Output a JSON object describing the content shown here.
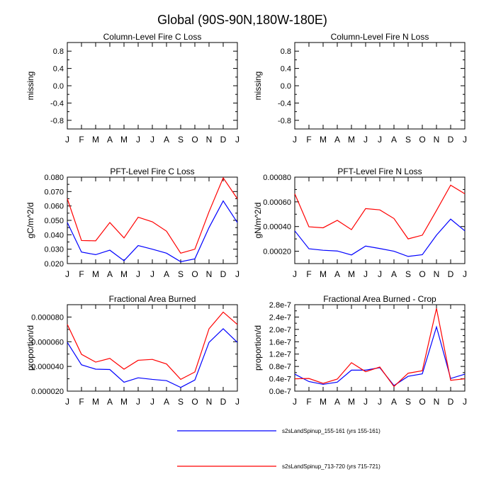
{
  "title": "Global (90S-90N,180W-180E)",
  "month_labels": [
    "J",
    "F",
    "M",
    "A",
    "M",
    "J",
    "J",
    "A",
    "S",
    "O",
    "N",
    "D",
    "J"
  ],
  "chart_data": [
    {
      "type": "line",
      "title": "Column-Level Fire C Loss",
      "ylabel": "missing",
      "ylim": [
        -1.0,
        1.0
      ],
      "yticks": [
        0.8,
        0.4,
        0.0,
        -0.4,
        -0.8
      ],
      "yticklabels": [
        "0.8",
        "0.4",
        "0.0",
        "-0.4",
        "-0.8"
      ],
      "series": []
    },
    {
      "type": "line",
      "title": "Column-Level Fire N Loss",
      "ylabel": "missing",
      "ylim": [
        -1.0,
        1.0
      ],
      "yticks": [
        0.8,
        0.4,
        0.0,
        -0.4,
        -0.8
      ],
      "yticklabels": [
        "0.8",
        "0.4",
        "0.0",
        "-0.4",
        "-0.8"
      ],
      "series": []
    },
    {
      "type": "line",
      "title": "PFT-Level Fire C Loss",
      "ylabel": "gC/m^2/d",
      "ylim": [
        0.02,
        0.08
      ],
      "yticks": [
        0.08,
        0.07,
        0.06,
        0.05,
        0.04,
        0.03,
        0.02
      ],
      "yticklabels": [
        "0.080",
        "0.070",
        "0.060",
        "0.050",
        "0.040",
        "0.030",
        "0.020"
      ],
      "series": [
        {
          "name": "s2sLandSpinup_155-161 (yrs 155-161)",
          "color": "#0000ff",
          "values": [
            0.0485,
            0.028,
            0.0262,
            0.0293,
            0.022,
            0.0325,
            0.03,
            0.0272,
            0.0213,
            0.0233,
            0.045,
            0.0635,
            0.0485
          ]
        },
        {
          "name": "s2sLandSpinup_713-720 (yrs 715-721)",
          "color": "#ff0000",
          "values": [
            0.065,
            0.036,
            0.0358,
            0.0485,
            0.0378,
            0.0522,
            0.049,
            0.0425,
            0.0272,
            0.03,
            0.056,
            0.0795,
            0.065
          ]
        }
      ]
    },
    {
      "type": "line",
      "title": "PFT-Level Fire N Loss",
      "ylabel": "gN/m^2/d",
      "ylim": [
        0.0001,
        0.0008
      ],
      "yticks": [
        0.0008,
        0.0006,
        0.0004,
        0.0002
      ],
      "yticklabels": [
        "0.00080",
        "0.00060",
        "0.00040",
        "0.00020"
      ],
      "series": [
        {
          "name": "s2sLandSpinup_155-161 (yrs 155-161)",
          "color": "#0000ff",
          "values": [
            0.000365,
            0.00022,
            0.000208,
            0.000202,
            0.00017,
            0.000242,
            0.000222,
            0.0002,
            0.000158,
            0.000172,
            0.00033,
            0.00046,
            0.000365
          ]
        },
        {
          "name": "s2sLandSpinup_713-720 (yrs 715-721)",
          "color": "#ff0000",
          "values": [
            0.000665,
            0.000398,
            0.00039,
            0.00045,
            0.000375,
            0.000545,
            0.000535,
            0.000465,
            0.0003,
            0.00033,
            0.00053,
            0.000735,
            0.000665
          ]
        }
      ]
    },
    {
      "type": "line",
      "title": "Fractional Area Burned",
      "ylabel": "proportion/d",
      "ylim": [
        2e-05,
        9e-05
      ],
      "yticks": [
        8e-05,
        6e-05,
        4e-05,
        2e-05
      ],
      "yticklabels": [
        "0.000080",
        "0.000060",
        "0.000040",
        "0.000020"
      ],
      "series": [
        {
          "name": "s2sLandSpinup_155-161 (yrs 155-161)",
          "color": "#0000ff",
          "values": [
            5.95e-05,
            4.13e-05,
            3.78e-05,
            3.75e-05,
            2.72e-05,
            3.08e-05,
            2.95e-05,
            2.85e-05,
            2.3e-05,
            2.9e-05,
            5.95e-05,
            7.05e-05,
            5.95e-05
          ]
        },
        {
          "name": "s2sLandSpinup_713-720 (yrs 715-721)",
          "color": "#ff0000",
          "values": [
            7.4e-05,
            4.98e-05,
            4.35e-05,
            4.65e-05,
            3.78e-05,
            4.5e-05,
            4.57e-05,
            4.2e-05,
            2.95e-05,
            3.55e-05,
            7.05e-05,
            8.4e-05,
            7.4e-05
          ]
        }
      ]
    },
    {
      "type": "line",
      "title": "Fractional Area Burned - Crop",
      "ylabel": "proportion/d",
      "ylim": [
        0.0,
        2.8e-07
      ],
      "yticks": [
        2.8e-07,
        2.4e-07,
        2e-07,
        1.6e-07,
        1.2e-07,
        8e-08,
        4e-08,
        0.0
      ],
      "yticklabels": [
        "2.8e-7",
        "2.4e-7",
        "2.0e-7",
        "1.6e-7",
        "1.2e-7",
        "0.8e-7",
        "0.4e-7",
        "0.0e-7"
      ],
      "series": [
        {
          "name": "s2sLandSpinup_155-161 (yrs 155-161)",
          "color": "#0000ff",
          "values": [
            5.5e-08,
            3.1e-08,
            2.2e-08,
            2.9e-08,
            6.8e-08,
            6.8e-08,
            7.6e-08,
            1.8e-08,
            4.8e-08,
            5.6e-08,
            2.08e-07,
            4.1e-08,
            5.5e-08
          ]
        },
        {
          "name": "s2sLandSpinup_713-720 (yrs 715-721)",
          "color": "#ff0000",
          "values": [
            4e-08,
            4.1e-08,
            2.5e-08,
            3.9e-08,
            9.2e-08,
            6.3e-08,
            7.8e-08,
            1.5e-08,
            5.8e-08,
            6.6e-08,
            2.68e-07,
            3.5e-08,
            4e-08
          ]
        }
      ]
    }
  ],
  "legend": [
    {
      "label": "s2sLandSpinup_155-161 (yrs 155-161)",
      "color": "#0000ff"
    },
    {
      "label": "s2sLandSpinup_713-720 (yrs 715-721)",
      "color": "#ff0000"
    }
  ]
}
